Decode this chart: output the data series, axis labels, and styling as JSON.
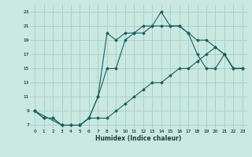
{
  "xlabel": "Humidex (Indice chaleur)",
  "bg_color": "#c8e8e0",
  "grid_color": "#a8ccc8",
  "line_color": "#1a6060",
  "xlim": [
    -0.5,
    23.5
  ],
  "ylim": [
    6.5,
    24
  ],
  "xticks": [
    0,
    1,
    2,
    3,
    4,
    5,
    6,
    7,
    8,
    9,
    10,
    11,
    12,
    13,
    14,
    15,
    16,
    17,
    18,
    19,
    20,
    21,
    22,
    23
  ],
  "yticks": [
    7,
    9,
    11,
    13,
    15,
    17,
    19,
    21,
    23
  ],
  "line1_x": [
    0,
    1,
    2,
    3,
    4,
    5,
    6,
    7,
    8,
    9,
    10,
    11,
    12,
    13,
    14,
    15,
    16,
    17,
    18,
    19,
    20,
    21,
    22,
    23
  ],
  "line1_y": [
    9,
    8,
    8,
    7,
    7,
    7,
    8,
    11,
    20,
    19,
    20,
    20,
    21,
    21,
    23,
    21,
    21,
    20,
    19,
    19,
    18,
    17,
    15,
    15
  ],
  "line2_x": [
    0,
    1,
    2,
    3,
    4,
    5,
    6,
    7,
    8,
    9,
    10,
    11,
    12,
    13,
    14,
    15,
    16,
    17,
    18,
    19,
    20,
    21,
    22,
    23
  ],
  "line2_y": [
    9,
    8,
    8,
    7,
    7,
    7,
    8,
    11,
    15,
    15,
    19,
    20,
    20,
    21,
    21,
    21,
    21,
    20,
    17,
    15,
    15,
    17,
    15,
    15
  ],
  "line3_x": [
    0,
    3,
    5,
    6,
    7,
    8,
    9,
    10,
    11,
    12,
    13,
    14,
    15,
    16,
    17,
    18,
    19,
    20,
    21,
    22,
    23
  ],
  "line3_y": [
    9,
    7,
    7,
    8,
    8,
    8,
    9,
    10,
    11,
    12,
    13,
    13,
    14,
    15,
    15,
    16,
    17,
    18,
    17,
    15,
    15
  ]
}
